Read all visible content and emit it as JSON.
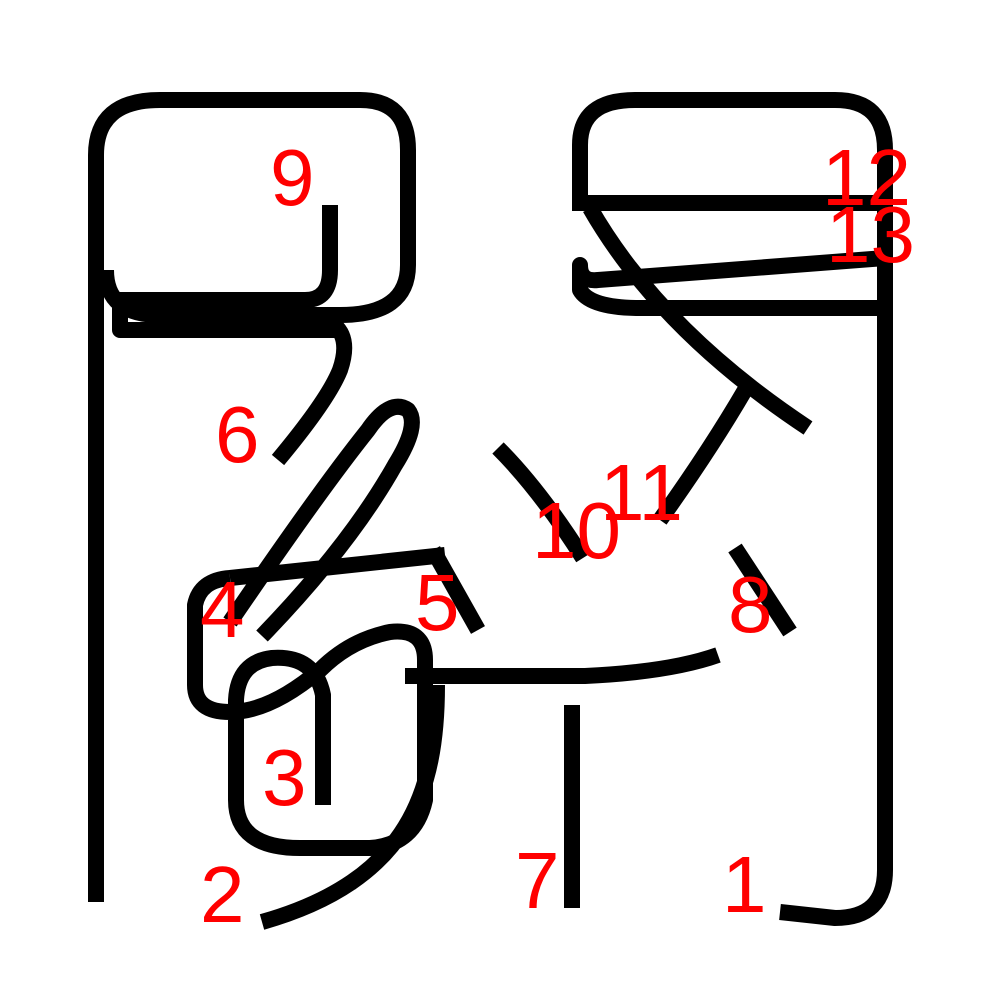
{
  "strokes": [
    {
      "id": "1",
      "label": "1"
    },
    {
      "id": "2",
      "label": "2"
    },
    {
      "id": "3",
      "label": "3"
    },
    {
      "id": "4",
      "label": "4"
    },
    {
      "id": "5",
      "label": "5"
    },
    {
      "id": "6",
      "label": "6"
    },
    {
      "id": "7",
      "label": "7"
    },
    {
      "id": "8",
      "label": "8"
    },
    {
      "id": "9",
      "label": "9"
    },
    {
      "id": "10",
      "label": "10"
    },
    {
      "id": "11",
      "label": "11"
    },
    {
      "id": "12",
      "label": "12"
    },
    {
      "id": "13",
      "label": "13"
    }
  ]
}
